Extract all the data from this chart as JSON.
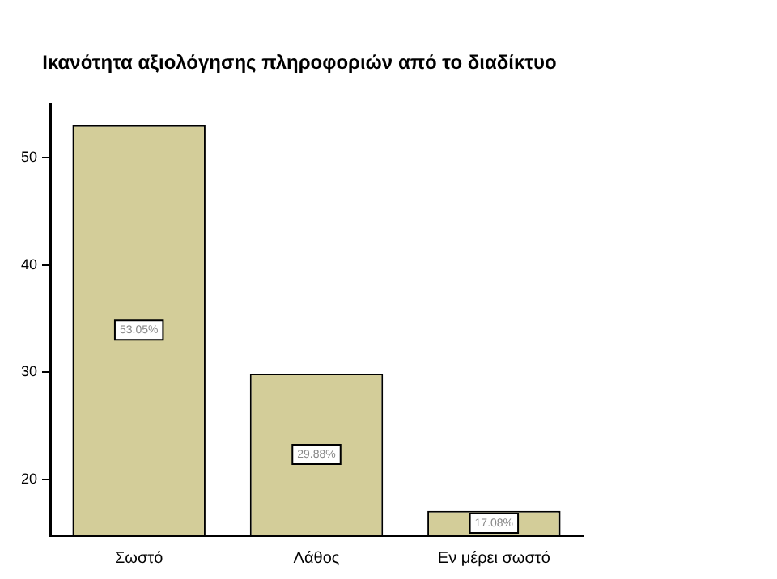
{
  "chart_data": {
    "type": "bar",
    "title": "Ικανότητα αξιολόγησης πληροφοριών από το διαδίκτυο",
    "categories": [
      "Σωστό",
      "Λάθος",
      "Εν μέρει σωστό"
    ],
    "values": [
      53.05,
      29.88,
      17.08
    ],
    "value_labels": [
      "53.05%",
      "29.88%",
      "17.08%"
    ],
    "color": "#d3cd99",
    "ylim": [
      14.8,
      55
    ],
    "yticks": [
      20,
      30,
      40,
      50
    ],
    "grid": false,
    "legend": false
  }
}
